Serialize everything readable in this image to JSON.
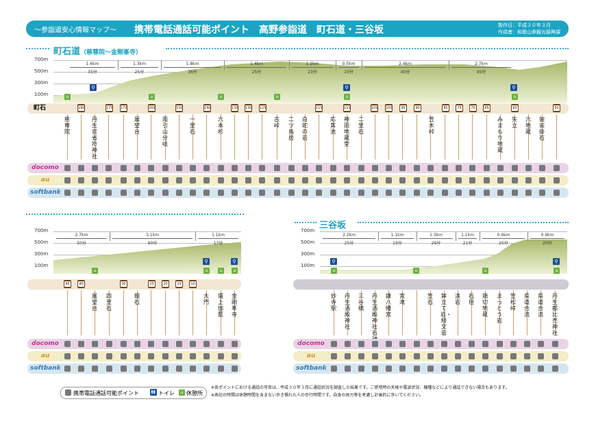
{
  "header": {
    "subtitle": "～参詣道安心情報マップ～",
    "title": "携帯電話通話可能ポイント　高野参詣道　町石道・三谷坂",
    "produced": "製作日：平成３０年３月",
    "author": "作成者：和歌山県観光振興課"
  },
  "section1": {
    "title": "町石道",
    "subtitle": "（慈尊院～金剛峯寺）",
    "lane_label": "町石",
    "altitudes": [
      "700m",
      "500m",
      "300m",
      "100m"
    ],
    "segments": [
      {
        "dist": "1.6km",
        "time": "35分"
      },
      {
        "dist": "1.3km",
        "time": "25分"
      },
      {
        "dist": "1.8km",
        "time": "36分"
      },
      {
        "dist": "1.4km",
        "time": "25分"
      },
      {
        "dist": "1.2km",
        "time": "23分"
      },
      {
        "dist": "0.5km",
        "time": "10分"
      },
      {
        "dist": "2.4km",
        "time": "40分"
      },
      {
        "dist": "2.7km",
        "time": "45分"
      }
    ],
    "markers": [
      "180",
      "175",
      "170",
      "160",
      "150",
      "140",
      "135",
      "130",
      "125",
      "115",
      "110",
      "105",
      "100",
      "95",
      "90",
      "80",
      "75",
      "70",
      "65",
      "60",
      "50"
    ],
    "names": [
      "慈尊院",
      "丹生官省符神社",
      "展望台",
      "雨引山分岐",
      "一里石",
      "六本杉",
      "古峠",
      "二ツ鳥居",
      "白蛇の岩",
      "応其池",
      "神田地蔵堂",
      "二里石",
      "笠木峠",
      "みまもり地蔵",
      "矢立",
      "六地蔵",
      "袈裟掛石"
    ]
  },
  "section2": {
    "altitudes": [
      "700m",
      "500m",
      "300m",
      "100m"
    ],
    "segments": [
      {
        "dist": "2.7km",
        "time": "50分"
      },
      {
        "dist": "3.1km",
        "time": "60分"
      },
      {
        "dist": "1.1km",
        "time": "17分"
      }
    ],
    "markers": [
      "45",
      "40",
      "30",
      "25",
      "20",
      "15",
      "10"
    ],
    "names": [
      "展望台",
      "四里石",
      "鏡石",
      "大門",
      "壇上伽藍",
      "金剛峯寺"
    ]
  },
  "section3": {
    "title": "三谷坂",
    "altitudes": [
      "700m",
      "500m",
      "300m",
      "100m"
    ],
    "segments": [
      {
        "dist": "2.2km",
        "time": "25分"
      },
      {
        "dist": "1.1km",
        "time": "19分"
      },
      {
        "dist": "1.3km",
        "time": "26分"
      },
      {
        "dist": "1.1km",
        "time": "21分"
      },
      {
        "dist": "0.9km",
        "time": "25分"
      },
      {
        "dist": "0.9km",
        "time": "20分"
      }
    ],
    "names": [
      "妙寺駅",
      "丹生酒殿神社",
      "三谷橋",
      "丹生酒殿神社石碑",
      "鎌八幡宮",
      "宮滝",
      "笠石",
      "鉾立て岩・経文岩",
      "涙岩",
      "石垣",
      "頬切地蔵",
      "まっとう岩",
      "笠松峠",
      "県道合流",
      "県道合流",
      "丹生都比売神社"
    ]
  },
  "carriers": [
    "docomo",
    "au",
    "softbank"
  ],
  "colors": {
    "docomo": "#e8d4e6",
    "au": "#f3edc8",
    "softbank": "#d5e6ef",
    "docomo_text": "#c2378f",
    "au_text": "#d29a16",
    "softbank_text": "#3b7bb6",
    "accent": "#1da3c4",
    "marker": "#7a3d12"
  },
  "legend": {
    "phone": "携帯電話通話可能ポイント",
    "toilet": "トイレ",
    "rest": "休憩所"
  },
  "icons": {
    "toilet": "トイレ",
    "rest": "休"
  },
  "notes": [
    "※各ポイントにおける通話の可否は、平成３０年３月に通話状況を調査した結果です。ご使用時の天候や電波状況、機種などにより通話できない場合もあります。",
    "※表記の時間は休憩時間を含まない歩き慣れた人の歩行時間です。自身の体力等を考慮し計画的に歩いてください。"
  ]
}
